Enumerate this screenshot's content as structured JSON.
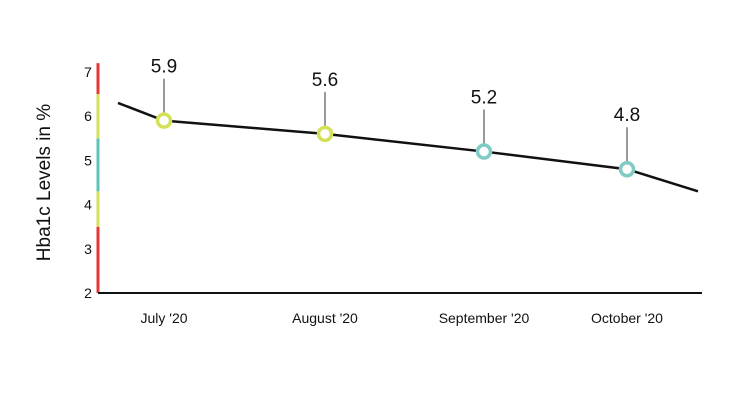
{
  "chart_data": {
    "type": "line",
    "ylabel": "Hba1c Levels in %",
    "ylim": [
      2,
      7
    ],
    "yticks": [
      "2",
      "3",
      "4",
      "5",
      "6",
      "7"
    ],
    "categories": [
      "July '20",
      "August '20",
      "September '20",
      "October '20"
    ],
    "points": [
      {
        "label": "5.9",
        "value": 5.9,
        "color": "#d4e157"
      },
      {
        "label": "5.6",
        "value": 5.6,
        "color": "#d4e157"
      },
      {
        "label": "5.2",
        "value": 5.2,
        "color": "#80cbc4"
      },
      {
        "label": "4.8",
        "value": 4.8,
        "color": "#80cbc4"
      }
    ],
    "trend": {
      "start_value": 6.3,
      "end_value": 4.3
    },
    "y_color_bands": [
      {
        "from": 2,
        "to": 3.5,
        "color": "#e53935"
      },
      {
        "from": 3.5,
        "to": 4.3,
        "color": "#d4e157"
      },
      {
        "from": 4.3,
        "to": 5.5,
        "color": "#5fc4b7"
      },
      {
        "from": 5.5,
        "to": 6.5,
        "color": "#d4e157"
      },
      {
        "from": 6.5,
        "to": 7.2,
        "color": "#e53935"
      }
    ],
    "grid": false,
    "legend": "none"
  }
}
